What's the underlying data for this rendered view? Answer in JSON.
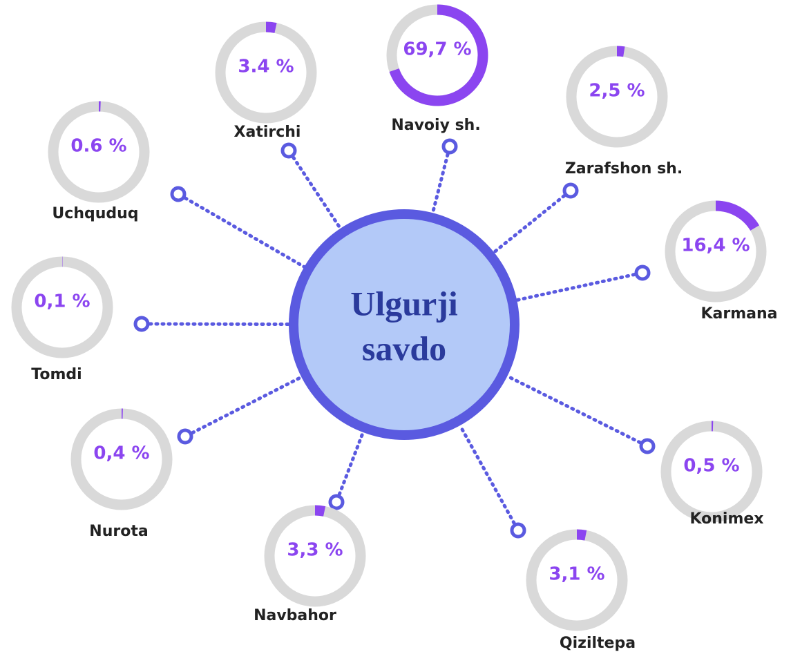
{
  "center": {
    "lines": [
      "Ulgurji",
      "savdo"
    ]
  },
  "nodes": [
    {
      "label": "Xatirchi",
      "value": 3.4,
      "value_label": "3.4 %"
    },
    {
      "label": "Navoiy sh.",
      "value": 69.7,
      "value_label": "69,7 %"
    },
    {
      "label": "Zarafshon sh.",
      "value": 2.5,
      "value_label": "2,5 %"
    },
    {
      "label": "Uchquduq",
      "value": 0.6,
      "value_label": "0.6 %"
    },
    {
      "label": "Karmana",
      "value": 16.4,
      "value_label": "16,4 %"
    },
    {
      "label": "Tomdi",
      "value": 0.1,
      "value_label": "0,1 %"
    },
    {
      "label": "Nurota",
      "value": 0.4,
      "value_label": "0,4 %"
    },
    {
      "label": "Navbahor",
      "value": 3.3,
      "value_label": "3,3 %"
    },
    {
      "label": "Qiziltepa",
      "value": 3.1,
      "value_label": "3,1 %"
    },
    {
      "label": "Konimex",
      "value": 0.5,
      "value_label": "0,5 %"
    }
  ]
}
